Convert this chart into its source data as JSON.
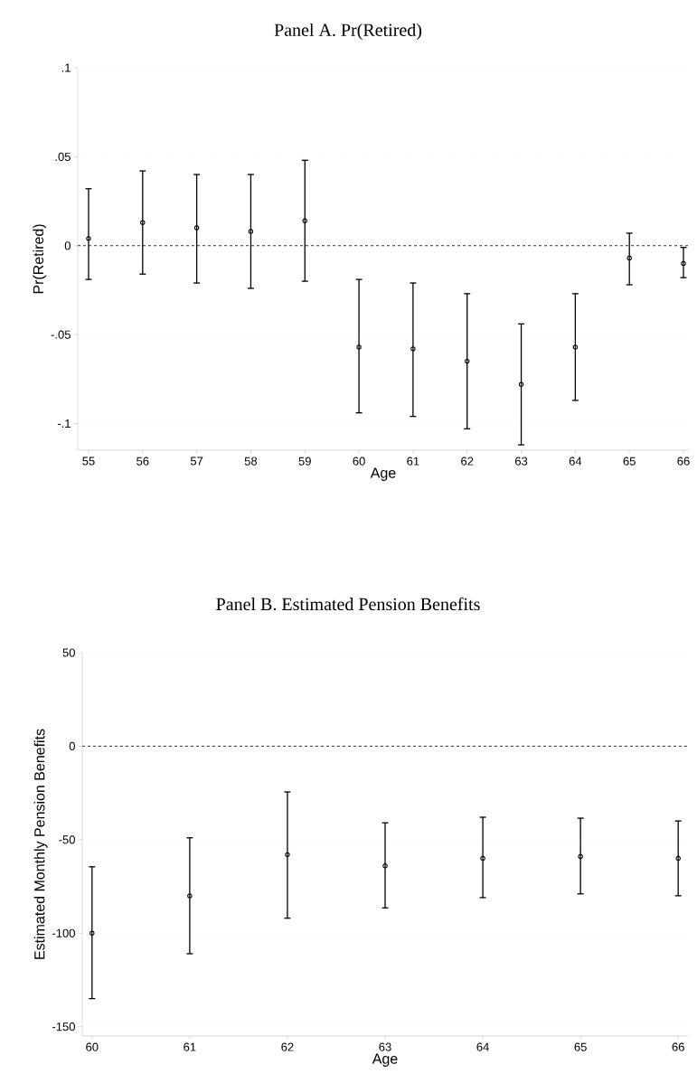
{
  "chart_data": [
    {
      "type": "scatter",
      "title": "Panel A. Pr(Retired)",
      "xlabel": "Age",
      "ylabel": "Pr(Retired)",
      "x": [
        55,
        56,
        57,
        58,
        59,
        60,
        61,
        62,
        63,
        64,
        65,
        66
      ],
      "values": [
        0.004,
        0.013,
        0.01,
        0.008,
        0.014,
        -0.057,
        -0.058,
        -0.065,
        -0.078,
        -0.057,
        -0.007,
        -0.01
      ],
      "errors": [
        [
          -0.019,
          0.032
        ],
        [
          -0.016,
          0.042
        ],
        [
          -0.021,
          0.04
        ],
        [
          -0.024,
          0.04
        ],
        [
          -0.02,
          0.048
        ],
        [
          -0.094,
          -0.019
        ],
        [
          -0.096,
          -0.021
        ],
        [
          -0.103,
          -0.027
        ],
        [
          -0.112,
          -0.044
        ],
        [
          -0.087,
          -0.027
        ],
        [
          -0.022,
          0.007
        ],
        [
          -0.018,
          -0.001
        ]
      ],
      "color": "#000000",
      "marker": "circle",
      "xlim": [
        54.8,
        66.1
      ],
      "ylim": [
        -0.115,
        0.1
      ],
      "xticks": [
        55,
        56,
        57,
        58,
        59,
        60,
        61,
        62,
        63,
        64,
        65,
        66
      ],
      "yticks": [
        {
          "value": -0.1,
          "label": "-.1"
        },
        {
          "value": -0.05,
          "label": "-.05"
        },
        {
          "value": 0,
          "label": "0"
        },
        {
          "value": 0.05,
          "label": ".05"
        },
        {
          "value": 0.1,
          "label": ".1"
        }
      ],
      "grid": "y",
      "ref_lines": [
        {
          "axis": "y",
          "value": 0,
          "line_style": "dashed",
          "color": "#000000"
        }
      ]
    },
    {
      "type": "scatter",
      "title": "Panel B. Estimated Pension Benefits",
      "xlabel": "Age",
      "ylabel": "Estimated Monthly Pension Benefits",
      "x": [
        60,
        61,
        62,
        63,
        64,
        65,
        66
      ],
      "values": [
        -100,
        -80,
        -58,
        -64,
        -60,
        -59,
        -60
      ],
      "errors": [
        [
          -135,
          -64.5
        ],
        [
          -111,
          -49
        ],
        [
          -92,
          -24.5
        ],
        [
          -86.5,
          -41
        ],
        [
          -81,
          -38
        ],
        [
          -79,
          -38.5
        ],
        [
          -80,
          -40
        ]
      ],
      "color": "#000000",
      "marker": "circle",
      "xlim": [
        59.9,
        66.1
      ],
      "ylim": [
        -155,
        50
      ],
      "xticks": [
        60,
        61,
        62,
        63,
        64,
        65,
        66
      ],
      "yticks": [
        -150,
        -100,
        -50,
        0,
        50
      ],
      "grid": "y",
      "ref_lines": [
        {
          "axis": "y",
          "value": 0,
          "line_style": "dashed",
          "color": "#000000"
        }
      ]
    }
  ]
}
